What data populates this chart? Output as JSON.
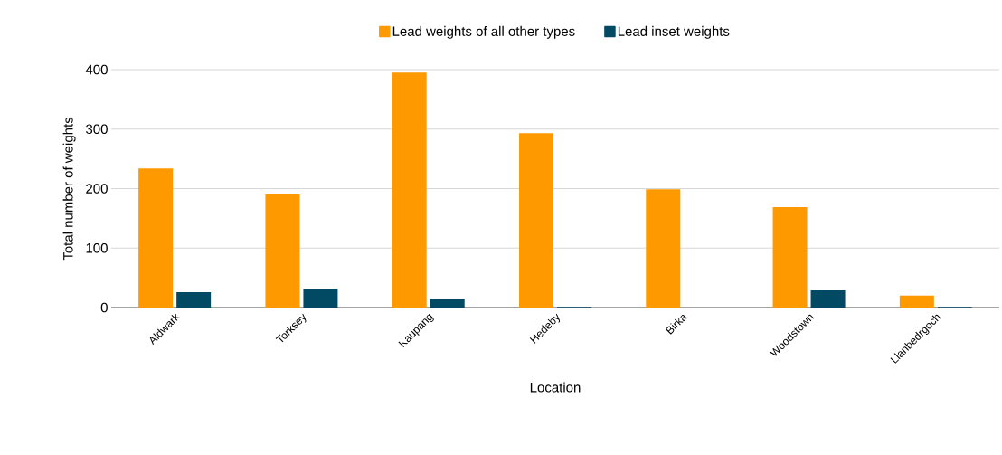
{
  "chart_data": {
    "type": "bar",
    "xlabel": "Location",
    "ylabel": "Total number of weights",
    "categories": [
      "Aldwark",
      "Torksey",
      "Kaupang",
      "Hedeby",
      "Birka",
      "Woodstown",
      "Llanbedrgoch"
    ],
    "series": [
      {
        "name": "Lead weights of all other types",
        "color": "#ff9900",
        "values": [
          234,
          190,
          395,
          293,
          199,
          169,
          20
        ]
      },
      {
        "name": "Lead inset weights",
        "color": "#024a63",
        "values": [
          26,
          32,
          15,
          1,
          0,
          29,
          1
        ]
      }
    ],
    "ylim": [
      0,
      400
    ],
    "yticks": [
      0,
      100,
      200,
      300,
      400
    ],
    "grid": "y",
    "legend": "top"
  }
}
